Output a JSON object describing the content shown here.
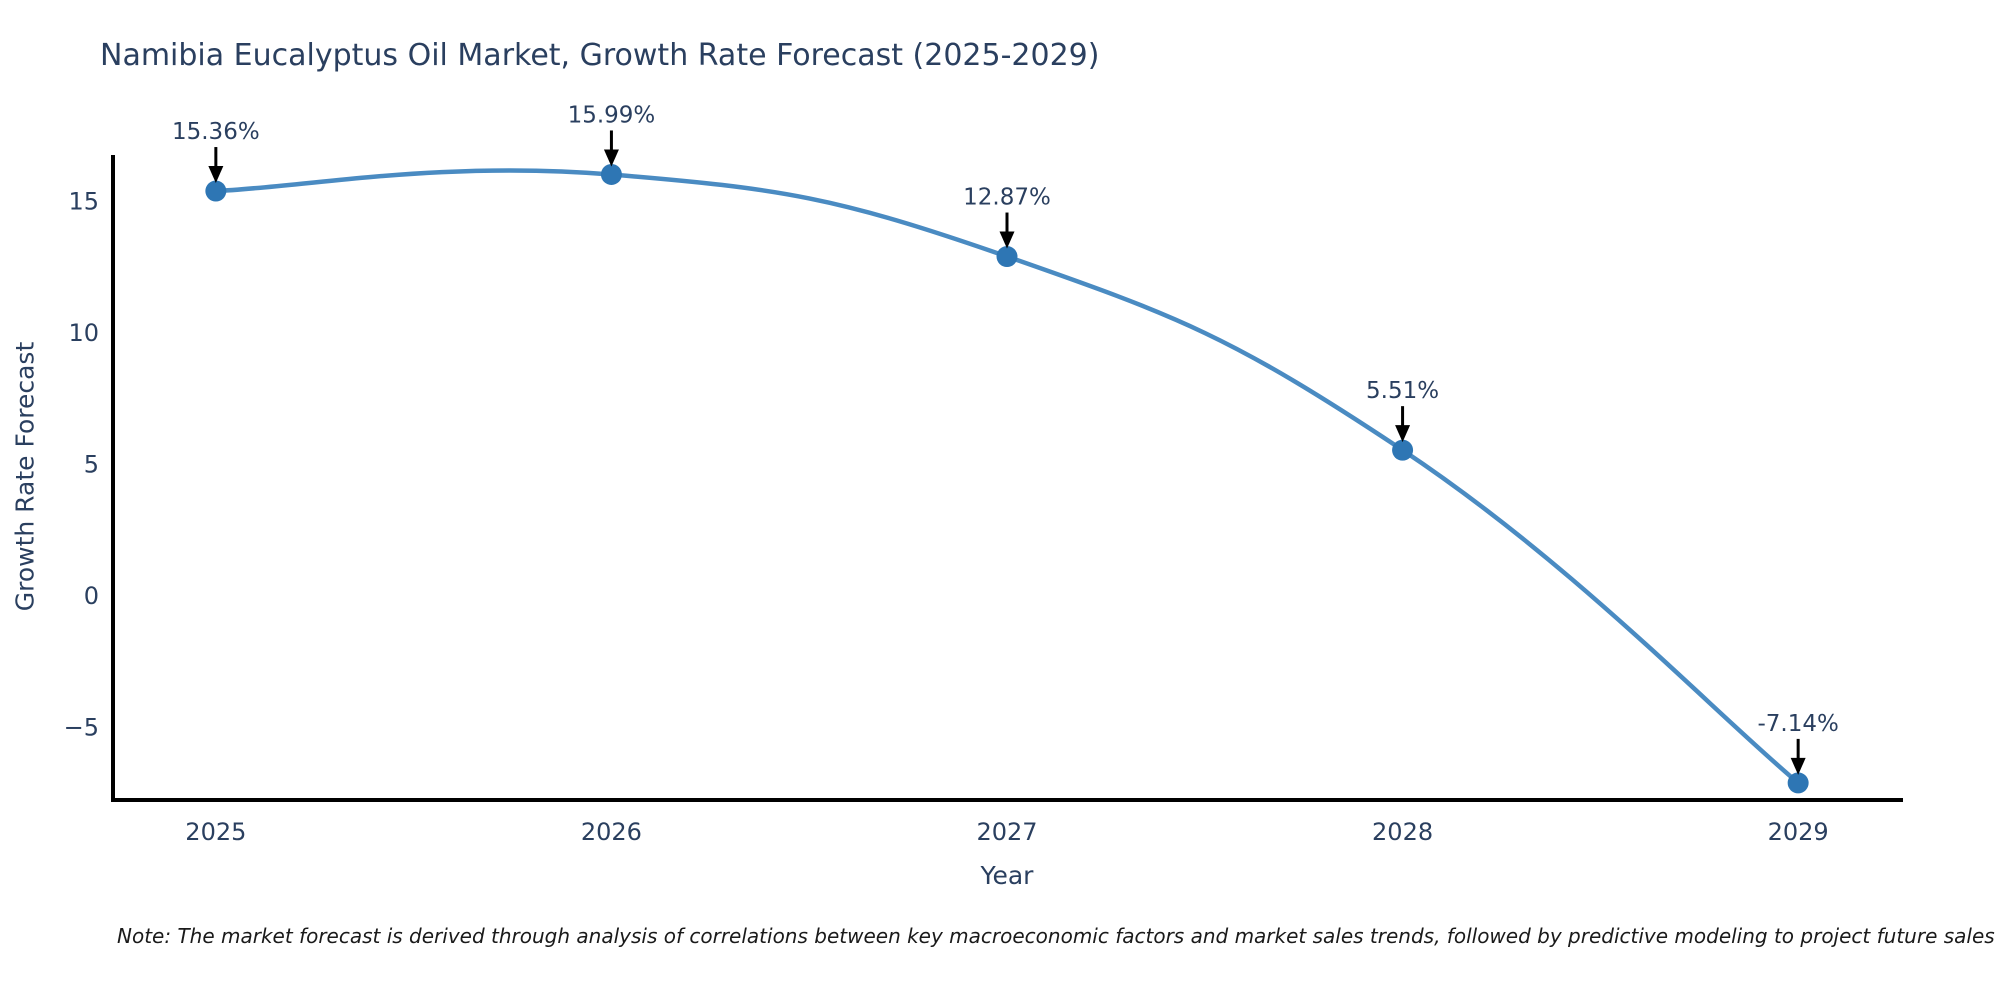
{
  "title": "Namibia Eucalyptus Oil Market, Growth Rate Forecast (2025-2029)",
  "footnote": "Note: The market forecast is derived through analysis of correlations between key macroeconomic factors and market sales trends, followed by predictive modeling to project future sales",
  "chart_data": {
    "type": "line",
    "title": "Namibia Eucalyptus Oil Market, Growth Rate Forecast (2025-2029)",
    "xlabel": "Year",
    "ylabel": "Growth Rate Forecast",
    "x": [
      2025,
      2026,
      2027,
      2028,
      2029
    ],
    "values": [
      15.36,
      15.99,
      12.87,
      5.51,
      -7.14
    ],
    "point_labels": [
      "15.36%",
      "15.99%",
      "12.87%",
      "5.51%",
      "-7.14%"
    ],
    "x_tick_labels": [
      "2025",
      "2026",
      "2027",
      "2028",
      "2029"
    ],
    "y_ticks": [
      15,
      10,
      5,
      0,
      -5
    ],
    "y_tick_labels": [
      "15",
      "10",
      "5",
      "0",
      "−5"
    ],
    "xlim": [
      2024.74,
      2029.26
    ],
    "ylim": [
      -7.79,
      16.73
    ],
    "line_shape": "spline",
    "grid": false,
    "legend": "none",
    "colors": {
      "line": "#4a8bc2",
      "marker": "#2e76b4",
      "axis": "#000000",
      "tick_text": "#2a3f5f",
      "annotation_text": "#2a3f5f",
      "annotation_arrow": "#000000",
      "background": "#ffffff"
    }
  }
}
